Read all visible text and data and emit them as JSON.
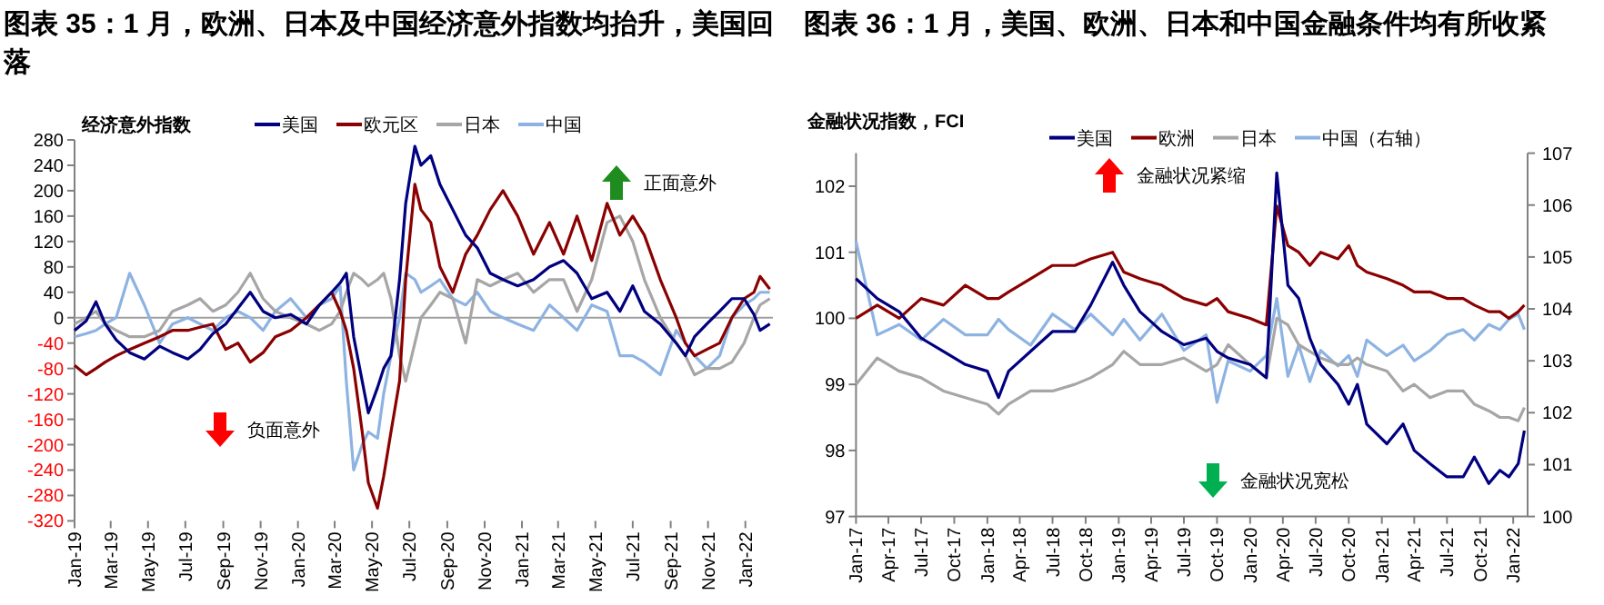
{
  "chart_data": [
    {
      "type": "line",
      "title": "图表 35：1 月，欧洲、日本及中国经济意外指数均抬升，美国回落",
      "ylabel": "经济意外指数",
      "legend": "top",
      "x": [
        "2019-01-01",
        "2019-01-20",
        "2019-02-05",
        "2019-02-20",
        "2019-03-10",
        "2019-04-01",
        "2019-04-25",
        "2019-05-20",
        "2019-06-10",
        "2019-07-05",
        "2019-07-25",
        "2019-08-15",
        "2019-09-05",
        "2019-09-25",
        "2019-10-15",
        "2019-11-05",
        "2019-11-25",
        "2019-12-20",
        "2020-01-15",
        "2020-02-05",
        "2020-02-25",
        "2020-03-10",
        "2020-03-20",
        "2020-04-01",
        "2020-04-15",
        "2020-04-25",
        "2020-05-10",
        "2020-05-20",
        "2020-06-01",
        "2020-06-15",
        "2020-06-25",
        "2020-07-10",
        "2020-07-20",
        "2020-08-05",
        "2020-08-20",
        "2020-09-10",
        "2020-10-01",
        "2020-10-20",
        "2020-11-10",
        "2020-12-01",
        "2020-12-25",
        "2021-01-20",
        "2021-02-15",
        "2021-03-10",
        "2021-04-01",
        "2021-04-25",
        "2021-05-20",
        "2021-06-10",
        "2021-07-01",
        "2021-07-20",
        "2021-08-15",
        "2021-09-10",
        "2021-09-25",
        "2021-10-10",
        "2021-10-30",
        "2021-11-20",
        "2021-12-10",
        "2021-12-30",
        "2022-01-15",
        "2022-01-25",
        "2022-02-10"
      ],
      "series": [
        {
          "name": "美国",
          "color": "#000080",
          "values": [
            -20,
            -5,
            25,
            -10,
            -35,
            -55,
            -65,
            -45,
            -55,
            -65,
            -50,
            -25,
            -10,
            15,
            40,
            10,
            0,
            5,
            -10,
            20,
            40,
            55,
            70,
            -30,
            -100,
            -150,
            -110,
            -80,
            -60,
            60,
            180,
            270,
            240,
            255,
            210,
            170,
            130,
            110,
            70,
            60,
            50,
            60,
            80,
            90,
            70,
            30,
            40,
            10,
            50,
            10,
            -10,
            -40,
            -60,
            -30,
            -10,
            10,
            30,
            30,
            5,
            -20,
            -10
          ]
        },
        {
          "name": "欧元区",
          "color": "#8b0000",
          "values": [
            -75,
            -90,
            -80,
            -70,
            -60,
            -50,
            -40,
            -30,
            -20,
            -20,
            -15,
            -10,
            -50,
            -40,
            -70,
            -55,
            -30,
            -20,
            0,
            20,
            40,
            10,
            -20,
            -80,
            -180,
            -260,
            -300,
            -250,
            -180,
            -100,
            60,
            210,
            170,
            150,
            80,
            40,
            100,
            130,
            170,
            200,
            160,
            100,
            150,
            100,
            160,
            90,
            180,
            130,
            160,
            130,
            60,
            0,
            -40,
            -60,
            -50,
            -40,
            0,
            30,
            40,
            65,
            45
          ]
        },
        {
          "name": "日本",
          "color": "#a6a6a6",
          "values": [
            -10,
            0,
            10,
            -10,
            -20,
            -30,
            -30,
            -20,
            10,
            20,
            30,
            10,
            20,
            40,
            70,
            30,
            10,
            0,
            -10,
            -20,
            -10,
            10,
            40,
            70,
            60,
            50,
            60,
            70,
            30,
            -60,
            -100,
            -40,
            0,
            20,
            40,
            30,
            -40,
            60,
            50,
            60,
            70,
            40,
            60,
            60,
            10,
            60,
            150,
            160,
            120,
            60,
            0,
            -40,
            -60,
            -90,
            -80,
            -80,
            -70,
            -40,
            0,
            20,
            30
          ]
        },
        {
          "name": "中国",
          "color": "#8db3e2",
          "values": [
            -30,
            -25,
            -20,
            -10,
            0,
            70,
            20,
            -40,
            -10,
            0,
            -10,
            -20,
            0,
            10,
            0,
            -20,
            10,
            30,
            0,
            20,
            30,
            50,
            -100,
            -240,
            -200,
            -180,
            -190,
            -120,
            -60,
            0,
            70,
            60,
            40,
            50,
            60,
            30,
            20,
            40,
            10,
            0,
            -10,
            -20,
            20,
            0,
            -20,
            20,
            10,
            -60,
            -60,
            -70,
            -90,
            -20,
            -40,
            -60,
            -80,
            -60,
            0,
            20,
            30,
            40,
            40
          ]
        }
      ],
      "xlim": [
        "2019-01-01",
        "2022-02-15"
      ],
      "xticks": [
        {
          "value": "2019-01-01",
          "label": "Jan-19"
        },
        {
          "value": "2019-03-01",
          "label": "Mar-19"
        },
        {
          "value": "2019-05-01",
          "label": "May-19"
        },
        {
          "value": "2019-07-01",
          "label": "Jul-19"
        },
        {
          "value": "2019-09-01",
          "label": "Sep-19"
        },
        {
          "value": "2019-11-01",
          "label": "Nov-19"
        },
        {
          "value": "2020-01-01",
          "label": "Jan-20"
        },
        {
          "value": "2020-03-01",
          "label": "Mar-20"
        },
        {
          "value": "2020-05-01",
          "label": "May-20"
        },
        {
          "value": "2020-07-01",
          "label": "Jul-20"
        },
        {
          "value": "2020-09-01",
          "label": "Sep-20"
        },
        {
          "value": "2020-11-01",
          "label": "Nov-20"
        },
        {
          "value": "2021-01-01",
          "label": "Jan-21"
        },
        {
          "value": "2021-03-01",
          "label": "Mar-21"
        },
        {
          "value": "2021-05-01",
          "label": "May-21"
        },
        {
          "value": "2021-07-01",
          "label": "Jul-21"
        },
        {
          "value": "2021-09-01",
          "label": "Sep-21"
        },
        {
          "value": "2021-11-01",
          "label": "Nov-21"
        },
        {
          "value": "2022-01-01",
          "label": "Jan-22"
        }
      ],
      "ylim": [
        -320,
        280
      ],
      "yticks": [
        -320,
        -280,
        -240,
        -200,
        -160,
        -120,
        -80,
        -40,
        0,
        40,
        80,
        120,
        160,
        200,
        240,
        280
      ],
      "ref_lines": [
        {
          "axis": "y",
          "value": 0,
          "color": "#a0a0a0"
        }
      ],
      "annotations": [
        "正面意外",
        "负面意外"
      ]
    },
    {
      "type": "line",
      "title": "图表 36：1 月，美国、欧洲、日本和中国金融条件均有所收紧",
      "ylabel": "金融状况指数，FCI",
      "legend": "top",
      "x": [
        "2017-01-01",
        "2017-03-01",
        "2017-05-01",
        "2017-07-01",
        "2017-09-01",
        "2017-11-01",
        "2018-01-01",
        "2018-02-01",
        "2018-03-01",
        "2018-05-01",
        "2018-07-01",
        "2018-09-01",
        "2018-10-15",
        "2018-12-15",
        "2019-01-15",
        "2019-03-01",
        "2019-05-01",
        "2019-07-01",
        "2019-09-01",
        "2019-10-01",
        "2019-11-01",
        "2020-01-01",
        "2020-02-15",
        "2020-03-15",
        "2020-04-15",
        "2020-05-15",
        "2020-06-15",
        "2020-07-15",
        "2020-09-01",
        "2020-10-01",
        "2020-10-25",
        "2020-11-20",
        "2021-01-15",
        "2021-03-01",
        "2021-04-01",
        "2021-05-15",
        "2021-07-01",
        "2021-08-15",
        "2021-09-15",
        "2021-10-25",
        "2021-11-25",
        "2021-12-20",
        "2022-01-15",
        "2022-02-01"
      ],
      "series": [
        {
          "name": "美国",
          "color": "#000080",
          "values": [
            100.6,
            100.3,
            100.1,
            99.7,
            99.5,
            99.3,
            99.2,
            98.8,
            99.2,
            99.5,
            99.8,
            99.8,
            100.2,
            100.85,
            100.5,
            100.1,
            99.8,
            99.6,
            99.7,
            99.5,
            99.4,
            99.3,
            99.1,
            102.2,
            100.5,
            100.3,
            99.7,
            99.3,
            99.0,
            98.7,
            99.0,
            98.4,
            98.1,
            98.4,
            98.0,
            97.8,
            97.6,
            97.6,
            97.9,
            97.5,
            97.7,
            97.6,
            97.8,
            98.3
          ]
        },
        {
          "name": "欧洲",
          "color": "#8b0000",
          "values": [
            100.0,
            100.2,
            100.0,
            100.3,
            100.2,
            100.5,
            100.3,
            100.3,
            100.4,
            100.6,
            100.8,
            100.8,
            100.9,
            101.0,
            100.7,
            100.6,
            100.5,
            100.3,
            100.2,
            100.3,
            100.1,
            100.0,
            99.9,
            101.7,
            101.1,
            101.0,
            100.8,
            101.0,
            100.9,
            101.1,
            100.8,
            100.7,
            100.6,
            100.5,
            100.4,
            100.4,
            100.3,
            100.3,
            100.2,
            100.1,
            100.1,
            100.0,
            100.1,
            100.2
          ]
        },
        {
          "name": "日本",
          "color": "#a6a6a6",
          "values": [
            99.0,
            99.4,
            99.2,
            99.1,
            98.9,
            98.8,
            98.7,
            98.55,
            98.7,
            98.9,
            98.9,
            99.0,
            99.1,
            99.3,
            99.5,
            99.3,
            99.3,
            99.4,
            99.2,
            99.3,
            99.6,
            99.3,
            99.1,
            100.0,
            99.9,
            99.6,
            99.5,
            99.4,
            99.3,
            99.3,
            99.4,
            99.3,
            99.2,
            98.9,
            99.0,
            98.8,
            98.9,
            98.9,
            98.7,
            98.6,
            98.5,
            98.5,
            98.45,
            98.65
          ]
        },
        {
          "name": "中国（右轴）",
          "color": "#8db3e2",
          "axis": "y2",
          "values": [
            105.3,
            103.5,
            103.7,
            103.4,
            103.8,
            103.5,
            103.5,
            103.8,
            103.6,
            103.3,
            103.9,
            103.6,
            103.9,
            103.5,
            103.8,
            103.4,
            103.9,
            103.2,
            103.5,
            102.2,
            103.0,
            102.8,
            103.1,
            104.2,
            102.7,
            103.3,
            102.6,
            103.2,
            102.9,
            103.1,
            102.7,
            103.4,
            103.1,
            103.3,
            103.0,
            103.2,
            103.5,
            103.6,
            103.4,
            103.7,
            103.6,
            103.8,
            103.9,
            103.6
          ]
        }
      ],
      "xlim": [
        "2017-01-01",
        "2022-02-10"
      ],
      "xticks": [
        {
          "value": "2017-01-01",
          "label": "Jan-17"
        },
        {
          "value": "2017-04-01",
          "label": "Apr-17"
        },
        {
          "value": "2017-07-01",
          "label": "Jul-17"
        },
        {
          "value": "2017-10-01",
          "label": "Oct-17"
        },
        {
          "value": "2018-01-01",
          "label": "Jan-18"
        },
        {
          "value": "2018-04-01",
          "label": "Apr-18"
        },
        {
          "value": "2018-07-01",
          "label": "Jul-18"
        },
        {
          "value": "2018-10-01",
          "label": "Oct-18"
        },
        {
          "value": "2019-01-01",
          "label": "Jan-19"
        },
        {
          "value": "2019-04-01",
          "label": "Apr-19"
        },
        {
          "value": "2019-07-01",
          "label": "Jul-19"
        },
        {
          "value": "2019-10-01",
          "label": "Oct-19"
        },
        {
          "value": "2020-01-01",
          "label": "Jan-20"
        },
        {
          "value": "2020-04-01",
          "label": "Apr-20"
        },
        {
          "value": "2020-07-01",
          "label": "Jul-20"
        },
        {
          "value": "2020-10-01",
          "label": "Oct-20"
        },
        {
          "value": "2021-01-01",
          "label": "Jan-21"
        },
        {
          "value": "2021-04-01",
          "label": "Apr-21"
        },
        {
          "value": "2021-07-01",
          "label": "Jul-21"
        },
        {
          "value": "2021-10-01",
          "label": "Oct-21"
        },
        {
          "value": "2022-01-01",
          "label": "Jan-22"
        }
      ],
      "ylim": [
        97,
        102.5
      ],
      "yticks": [
        97,
        98,
        99,
        100,
        101,
        102
      ],
      "y2lim": [
        100,
        107
      ],
      "y2ticks": [
        100,
        101,
        102,
        103,
        104,
        105,
        106,
        107
      ],
      "annotations": [
        "金融状况紧缩",
        "金融状况宽松"
      ]
    }
  ]
}
